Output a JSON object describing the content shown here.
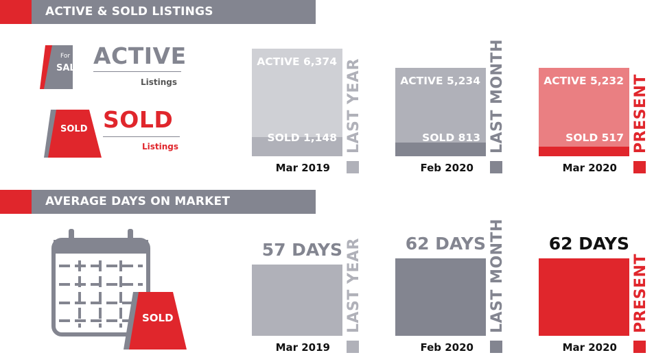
{
  "colors": {
    "red": "#e0262c",
    "gray": "#838590",
    "light_gray": "#b0b1b9",
    "pale_gray": "#cfd0d5",
    "pink": "#ea7f82"
  },
  "sections": {
    "listings_title": "ACTIVE & SOLD LISTINGS",
    "days_title": "AVERAGE DAYS ON MARKET"
  },
  "legend": {
    "for_sale_small": "For",
    "for_sale_big": "SALE",
    "active_title": "ACTIVE",
    "active_sub": "Listings",
    "sold_sign": "SOLD",
    "sold_title": "SOLD",
    "sold_sub": "Listings",
    "calendar_sign": "SOLD"
  },
  "chart_data": [
    {
      "type": "bar",
      "title": "ACTIVE & SOLD LISTINGS",
      "categories": [
        "Mar 2019",
        "Feb 2020",
        "Mar 2020"
      ],
      "period_labels": [
        "LAST YEAR",
        "LAST MONTH",
        "PRESENT"
      ],
      "series": [
        {
          "name": "ACTIVE",
          "values": [
            6374,
            5234,
            5232
          ]
        },
        {
          "name": "SOLD",
          "values": [
            1148,
            813,
            517
          ]
        }
      ],
      "active_text": [
        "ACTIVE 6,374",
        "ACTIVE 5,234",
        "ACTIVE 5,232"
      ],
      "sold_text": [
        "SOLD 1,148",
        "SOLD 813",
        "SOLD 517"
      ]
    },
    {
      "type": "bar",
      "title": "AVERAGE DAYS ON MARKET",
      "categories": [
        "Mar 2019",
        "Feb 2020",
        "Mar 2020"
      ],
      "period_labels": [
        "LAST YEAR",
        "LAST MONTH",
        "PRESENT"
      ],
      "values": [
        57,
        62,
        62
      ],
      "value_text": [
        "57 DAYS",
        "62 DAYS",
        "62 DAYS"
      ]
    }
  ]
}
